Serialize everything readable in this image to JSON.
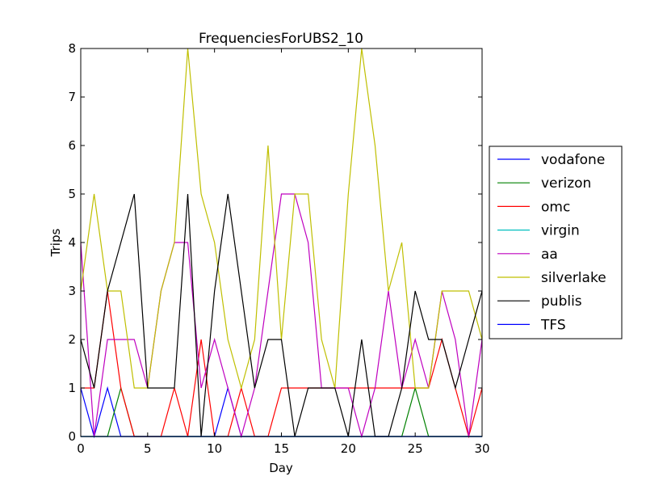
{
  "chart_data": {
    "type": "line",
    "title": "FrequenciesForUBS2_10",
    "xlabel": "Day",
    "ylabel": "Trips",
    "xlim": [
      0,
      30
    ],
    "ylim": [
      0,
      8
    ],
    "xticks": [
      "0",
      "5",
      "10",
      "15",
      "20",
      "25",
      "30"
    ],
    "yticks": [
      "0",
      "1",
      "2",
      "3",
      "4",
      "5",
      "6",
      "7",
      "8"
    ],
    "legend_position": "right",
    "x": [
      0,
      1,
      2,
      3,
      4,
      5,
      6,
      7,
      8,
      9,
      10,
      11,
      12,
      13,
      14,
      15,
      16,
      17,
      18,
      19,
      20,
      21,
      22,
      23,
      24,
      25,
      26,
      27,
      28,
      29,
      30
    ],
    "series": [
      {
        "name": "vodafone",
        "color": "#0000ff",
        "values": [
          1,
          0,
          1,
          0,
          0,
          0,
          0,
          0,
          0,
          0,
          0,
          1,
          0,
          0,
          0,
          0,
          0,
          0,
          0,
          0,
          0,
          0,
          0,
          0,
          0,
          0,
          0,
          0,
          0,
          0,
          0
        ]
      },
      {
        "name": "verizon",
        "color": "#008000",
        "values": [
          0,
          0,
          0,
          1,
          0,
          0,
          0,
          0,
          0,
          0,
          0,
          0,
          0,
          0,
          0,
          0,
          0,
          0,
          0,
          0,
          0,
          0,
          0,
          0,
          0,
          1,
          0,
          0,
          0,
          0,
          0
        ]
      },
      {
        "name": "omc",
        "color": "#ff0000",
        "values": [
          1,
          1,
          3,
          1,
          0,
          0,
          0,
          1,
          0,
          2,
          0,
          0,
          1,
          0,
          0,
          1,
          1,
          1,
          1,
          1,
          1,
          1,
          1,
          1,
          1,
          1,
          1,
          2,
          1,
          0,
          1
        ]
      },
      {
        "name": "virgin",
        "color": "#00bfbf",
        "values": [
          0,
          0,
          0,
          0,
          0,
          0,
          0,
          0,
          0,
          0,
          0,
          0,
          0,
          0,
          0,
          0,
          0,
          0,
          0,
          0,
          0,
          0,
          0,
          0,
          0,
          0,
          0,
          0,
          0,
          0,
          0
        ]
      },
      {
        "name": "aa",
        "color": "#bf00bf",
        "values": [
          4,
          0,
          2,
          2,
          2,
          1,
          3,
          4,
          4,
          1,
          2,
          1,
          0,
          1,
          3,
          5,
          5,
          4,
          1,
          1,
          1,
          0,
          1,
          3,
          1,
          2,
          1,
          3,
          2,
          0,
          2
        ]
      },
      {
        "name": "silverlake",
        "color": "#bfbf00",
        "values": [
          3,
          5,
          3,
          3,
          1,
          1,
          3,
          4,
          8,
          5,
          4,
          2,
          1,
          2,
          6,
          2,
          5,
          5,
          2,
          1,
          5,
          8,
          6,
          3,
          4,
          1,
          1,
          3,
          3,
          3,
          2
        ]
      },
      {
        "name": "publis",
        "color": "#000000",
        "values": [
          2,
          1,
          3,
          4,
          5,
          1,
          1,
          1,
          5,
          0,
          3,
          5,
          3,
          1,
          2,
          2,
          0,
          1,
          1,
          1,
          0,
          2,
          0,
          0,
          1,
          3,
          2,
          2,
          1,
          2,
          3
        ]
      },
      {
        "name": "TFS",
        "color": "#0000ff",
        "values": [
          0,
          0,
          0,
          0,
          0,
          0,
          0,
          0,
          0,
          0,
          0,
          0,
          0,
          0,
          0,
          0,
          0,
          0,
          0,
          0,
          0,
          0,
          0,
          0,
          0,
          0,
          0,
          0,
          0,
          0,
          0
        ]
      }
    ]
  }
}
